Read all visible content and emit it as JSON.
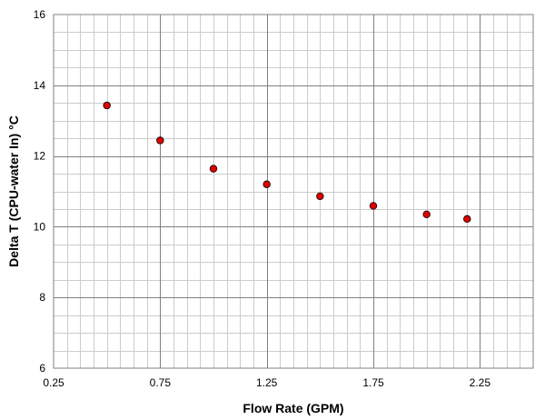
{
  "chart_data": {
    "type": "scatter",
    "title": "",
    "xlabel": "Flow Rate (GPM)",
    "ylabel": "Delta T (CPU-water In) °C",
    "xlim": [
      0.25,
      2.5
    ],
    "ylim": [
      6,
      16
    ],
    "x_ticks": [
      "0.25",
      "0.75",
      "1.25",
      "1.75",
      "2.25"
    ],
    "y_ticks": [
      "6",
      "8",
      "10",
      "12",
      "14",
      "16"
    ],
    "grid": true,
    "legend": "none",
    "marker_color": "#e00000",
    "series": [
      {
        "x": [
          0.5,
          0.75,
          1.0,
          1.25,
          1.5,
          1.75,
          2.0,
          2.19
        ],
        "y": [
          13.43,
          12.44,
          11.64,
          11.2,
          10.86,
          10.59,
          10.35,
          10.22
        ]
      }
    ]
  }
}
